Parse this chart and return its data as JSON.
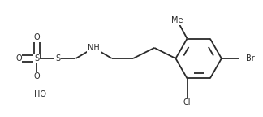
{
  "bg_color": "#ffffff",
  "line_color": "#2a2a2a",
  "line_width": 1.3,
  "font_size": 7.0,
  "xlim": [
    0.0,
    3.2
  ],
  "ylim": [
    0.0,
    1.4
  ],
  "figsize": [
    3.24,
    1.44
  ],
  "dpi": 100
}
